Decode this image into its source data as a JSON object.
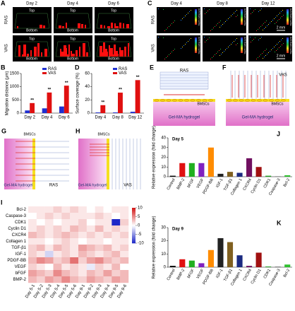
{
  "images_a": {
    "panel": "A",
    "columns": [
      "Day 2",
      "Day 4",
      "Day 6"
    ],
    "rows": [
      "RAS",
      "VAS"
    ],
    "top": "Top",
    "bottom": "Bottom"
  },
  "images_c": {
    "panel": "C",
    "columns": [
      "Day 4",
      "Day 8",
      "Day 12"
    ],
    "rows": [
      "RAS",
      "VAS"
    ],
    "scale": "2 mm",
    "colorbar_label": "Depth coding (μm)"
  },
  "diagrams": [
    {
      "panel": "E",
      "channel": "RAS",
      "cells": "BMSCs",
      "gel": "Gel-MA hydrogel"
    },
    {
      "panel": "F",
      "channel": "VAS",
      "cells": "BMSCs",
      "gel": "Gel-MA hydrogel"
    },
    {
      "panel": "G",
      "channel": "RAS",
      "cells": "BMSCs",
      "gel": "Gel-MA hydrogel"
    },
    {
      "panel": "H",
      "channel": "VAS",
      "cells": "BMSCs",
      "gel": "Gel-MA hydrogel"
    }
  ],
  "chart_data": [
    {
      "type": "grouped-bar",
      "panel": "B",
      "y_label": "Migration distance (μm)",
      "categories": [
        "Day 2",
        "Day 4",
        "Day 6"
      ],
      "series": [
        {
          "name": "RAS",
          "color": "#1f2fd0",
          "values": [
            100,
            180,
            250
          ]
        },
        {
          "name": "VAS",
          "color": "#e01010",
          "values": [
            380,
            780,
            1040
          ]
        }
      ],
      "significance": [
        "**",
        "**",
        "**"
      ],
      "ylim": [
        0,
        1500
      ],
      "yticks": [
        0,
        500,
        1000,
        1500
      ]
    },
    {
      "type": "grouped-bar",
      "panel": "D",
      "y_label": "Surface coverage (%)",
      "categories": [
        "Day 4",
        "Day 8",
        "Day 12"
      ],
      "series": [
        {
          "name": "RAS",
          "color": "#1f2fd0",
          "values": [
            1,
            1,
            2
          ]
        },
        {
          "name": "VAS",
          "color": "#e01010",
          "values": [
            12,
            31,
            50
          ]
        }
      ],
      "significance": [
        "**",
        "**",
        "**"
      ],
      "ylim": [
        0,
        60
      ],
      "yticks": [
        0,
        20,
        40,
        60
      ]
    },
    {
      "type": "heatmap",
      "panel": "I",
      "rows": [
        "Bcl-2",
        "Caspase-3",
        "CDK1",
        "Cyclin D1",
        "CXCR4",
        "Collagen 1",
        "TGF-β1",
        "IGF-1",
        "PDGF-BB",
        "VEGF",
        "bFGF",
        "BMP-2"
      ],
      "columns": [
        "Day 5-1",
        "Day 5-2",
        "Day 5-3",
        "Day 5-4",
        "Day 5-5",
        "Day 5-6",
        "Day 9-1",
        "Day 9-2",
        "Day 9-3",
        "Day 9-4",
        "Day 9-5",
        "Day 9-6"
      ],
      "z": [
        [
          1,
          1,
          1,
          2,
          1,
          2,
          1,
          0,
          1,
          0,
          1,
          1
        ],
        [
          0,
          1,
          2,
          1,
          2,
          1,
          1,
          1,
          2,
          1,
          0,
          1
        ],
        [
          1,
          0,
          1,
          0,
          1,
          1,
          2,
          0,
          1,
          1,
          -10,
          2
        ],
        [
          1,
          2,
          1,
          2,
          1,
          3,
          2,
          1,
          3,
          1,
          2,
          1
        ],
        [
          3,
          2,
          1,
          2,
          3,
          2,
          1,
          2,
          1,
          2,
          1,
          2
        ],
        [
          1,
          1,
          0,
          1,
          2,
          1,
          0,
          1,
          1,
          0,
          1,
          1
        ],
        [
          2,
          3,
          1,
          3,
          2,
          1,
          4,
          3,
          2,
          3,
          1,
          2
        ],
        [
          2,
          1,
          -2,
          1,
          2,
          1,
          3,
          2,
          1,
          2,
          3,
          1
        ],
        [
          3,
          5,
          4,
          2,
          3,
          6,
          2,
          4,
          5,
          3,
          2,
          3
        ],
        [
          2,
          1,
          0,
          3,
          1,
          2,
          1,
          -1,
          2,
          1,
          3,
          0
        ],
        [
          4,
          3,
          2,
          5,
          3,
          2,
          1,
          3,
          2,
          4,
          2,
          3
        ],
        [
          3,
          2,
          4,
          3,
          5,
          3,
          2,
          4,
          3,
          2,
          4,
          3
        ]
      ],
      "zlim": [
        -10,
        10
      ],
      "zticks": [
        10,
        5,
        0,
        -5,
        -10
      ]
    },
    {
      "type": "color-bar",
      "panel": "J",
      "subtitle": "Day 5",
      "y_label": "Relative expression (fold change)",
      "categories": [
        "Control",
        "BMP-2",
        "bFGF",
        "VEGF",
        "PDGF-BB",
        "IGF-1",
        "TGF-β1",
        "Collagen 1",
        "CXCR4",
        "Cyclin D1",
        "CDK1",
        "Caspase-3",
        "Bcl-2"
      ],
      "values": [
        1,
        14,
        14,
        14,
        30,
        3,
        5,
        4,
        19,
        10,
        1,
        0.5,
        1.5
      ],
      "colors": [
        "#000000",
        "#e01010",
        "#20b020",
        "#8020c0",
        "#ff8c00",
        "#222222",
        "#806020",
        "#1a2a80",
        "#701060",
        "#a01010",
        "#20a020",
        "#808080",
        "#30c030"
      ],
      "ylim": [
        0,
        40
      ],
      "yticks": [
        0,
        10,
        20,
        30,
        40
      ]
    },
    {
      "type": "color-bar",
      "panel": "K",
      "subtitle": "Day 9",
      "y_label": "Relative expression (fold change)",
      "categories": [
        "Control",
        "BMP-2",
        "bFGF",
        "VEGF",
        "PDGF-BB",
        "IGF-1",
        "TGF-β1",
        "Collagen 1",
        "CXCR4",
        "Cyclin D1",
        "CDK1",
        "Caspase-3",
        "Bcl-2"
      ],
      "values": [
        1,
        6,
        5,
        3,
        13,
        22,
        19,
        9,
        1,
        11,
        0.5,
        0.5,
        2
      ],
      "colors": [
        "#000000",
        "#e01010",
        "#20b020",
        "#8020c0",
        "#ff8c00",
        "#222222",
        "#806020",
        "#1a2a80",
        "#701060",
        "#a01010",
        "#20a020",
        "#808080",
        "#30c030"
      ],
      "ylim": [
        0,
        30
      ],
      "yticks": [
        0,
        10,
        20,
        30
      ]
    }
  ]
}
